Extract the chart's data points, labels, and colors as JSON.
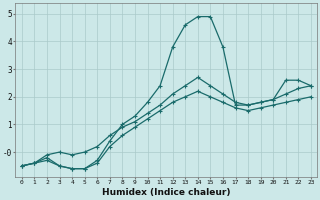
{
  "xlabel": "Humidex (Indice chaleur)",
  "bg_color": "#cce8e8",
  "line_color": "#1a6b6b",
  "grid_color": "#aacaca",
  "x_values": [
    0,
    1,
    2,
    3,
    4,
    5,
    6,
    7,
    8,
    9,
    10,
    11,
    12,
    13,
    14,
    15,
    16,
    17,
    18,
    19,
    20,
    21,
    22,
    23
  ],
  "y_main": [
    -0.5,
    -0.4,
    -0.2,
    -0.5,
    -0.6,
    -0.6,
    -0.3,
    0.4,
    1.0,
    1.3,
    1.8,
    2.4,
    3.8,
    4.6,
    4.9,
    4.9,
    3.8,
    1.7,
    1.7,
    1.8,
    1.9,
    2.6,
    2.6,
    2.4
  ],
  "y_high": [
    -0.5,
    -0.4,
    -0.1,
    0.0,
    -0.1,
    0.0,
    0.2,
    0.6,
    0.9,
    1.1,
    1.4,
    1.7,
    2.1,
    2.4,
    2.7,
    2.4,
    2.1,
    1.8,
    1.7,
    1.8,
    1.9,
    2.1,
    2.3,
    2.4
  ],
  "y_low": [
    -0.5,
    -0.4,
    -0.3,
    -0.5,
    -0.6,
    -0.6,
    -0.4,
    0.2,
    0.6,
    0.9,
    1.2,
    1.5,
    1.8,
    2.0,
    2.2,
    2.0,
    1.8,
    1.6,
    1.5,
    1.6,
    1.7,
    1.8,
    1.9,
    2.0
  ],
  "ylim": [
    -0.9,
    5.4
  ],
  "xlim": [
    -0.5,
    23.5
  ],
  "yticks": [
    0,
    1,
    2,
    3,
    4,
    5
  ],
  "ytick_labels": [
    "-0",
    "1",
    "2",
    "3",
    "4",
    "5"
  ],
  "xticks": [
    0,
    1,
    2,
    3,
    4,
    5,
    6,
    7,
    8,
    9,
    10,
    11,
    12,
    13,
    14,
    15,
    16,
    17,
    18,
    19,
    20,
    21,
    22,
    23
  ]
}
